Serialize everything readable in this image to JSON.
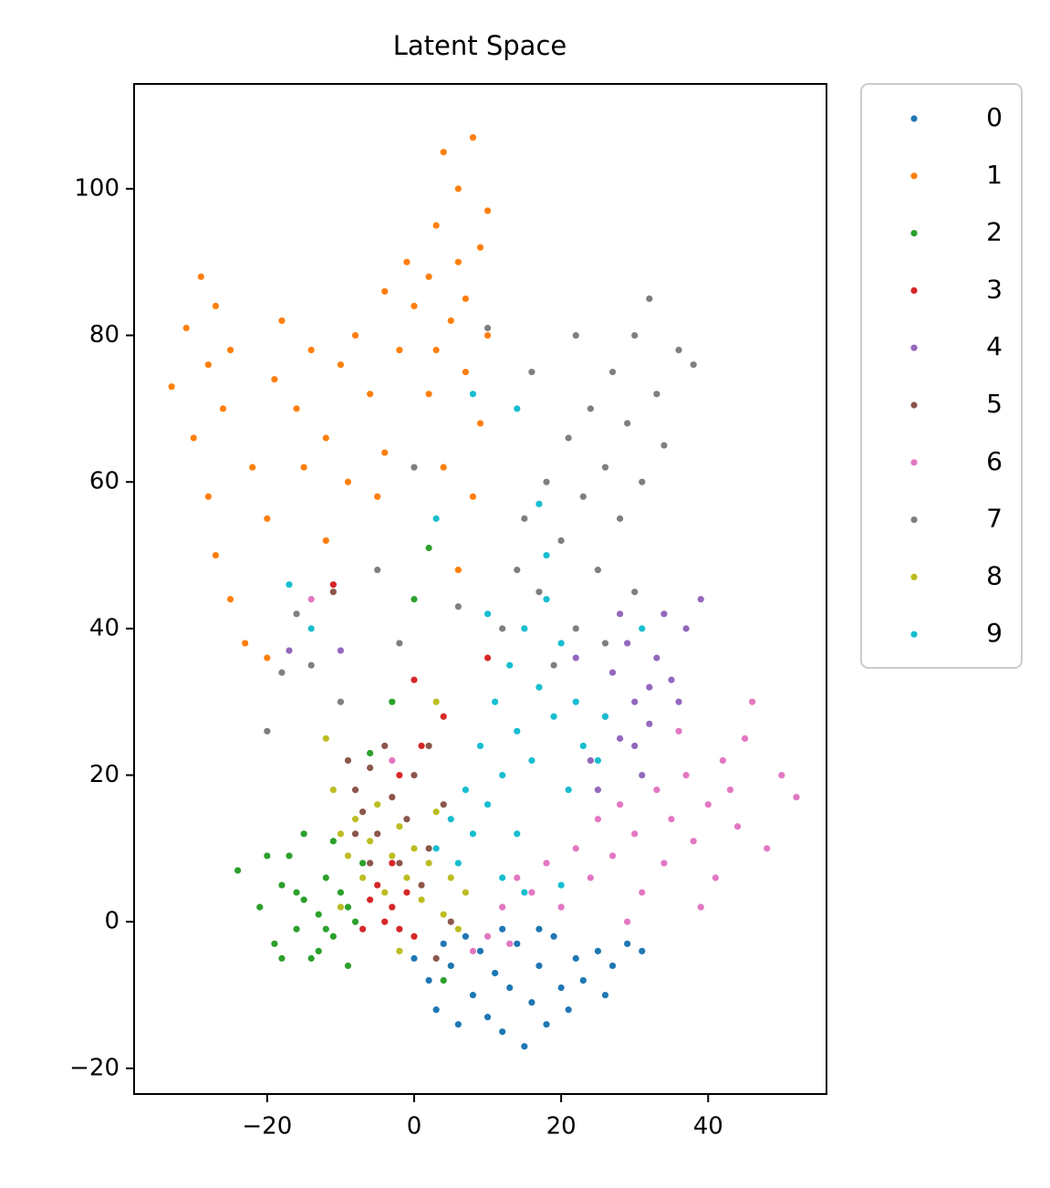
{
  "chart_data": {
    "type": "scatter",
    "title": "Latent Space",
    "xlim": [
      -38.1,
      56.1
    ],
    "ylim": [
      -23.5,
      114.3
    ],
    "xticks": [
      {
        "value": -20,
        "label": "−20"
      },
      0,
      20,
      40
    ],
    "yticks": [
      {
        "value": -20,
        "label": "−20"
      },
      0,
      20,
      40,
      60,
      80,
      100
    ],
    "legend": "outside-upper-right",
    "series": [
      {
        "name": "0",
        "color": "#1f77b4",
        "x": [
          0,
          2,
          3,
          5,
          6,
          8,
          9,
          10,
          11,
          12,
          13,
          14,
          15,
          16,
          17,
          18,
          19,
          20,
          21,
          22,
          23,
          25,
          26,
          27,
          29,
          31,
          7,
          12,
          17,
          4
        ],
        "values": [
          -5,
          -8,
          -12,
          -6,
          -14,
          -10,
          -4,
          -13,
          -7,
          -15,
          -9,
          -3,
          -17,
          -11,
          -6,
          -14,
          -2,
          -9,
          -12,
          -5,
          -8,
          -4,
          -10,
          -6,
          -3,
          -4,
          -2,
          -1,
          -1,
          -3
        ]
      },
      {
        "name": "1",
        "color": "#ff7f0e",
        "x": [
          -33,
          -31,
          -29,
          -28,
          -27,
          -26,
          -30,
          -28,
          -27,
          -25,
          -23,
          -22,
          -20,
          -19,
          -18,
          -16,
          -14,
          -12,
          -10,
          -8,
          -6,
          -4,
          -2,
          0,
          -5,
          -12,
          -9,
          -20,
          -25,
          -15,
          2,
          3,
          4,
          6,
          8,
          9,
          10,
          5,
          7,
          9,
          8,
          6,
          10,
          2,
          4,
          -1,
          6,
          3,
          7,
          -4
        ],
        "values": [
          73,
          81,
          88,
          76,
          84,
          70,
          66,
          58,
          50,
          44,
          38,
          62,
          55,
          74,
          82,
          70,
          78,
          66,
          76,
          80,
          72,
          64,
          78,
          84,
          58,
          52,
          60,
          36,
          78,
          62,
          88,
          95,
          105,
          100,
          107,
          92,
          97,
          82,
          75,
          68,
          58,
          48,
          80,
          72,
          62,
          90,
          90,
          78,
          85,
          86
        ]
      },
      {
        "name": "2",
        "color": "#2ca02c",
        "x": [
          -24,
          -21,
          -19,
          -18,
          -17,
          -16,
          -15,
          -14,
          -13,
          -12,
          -11,
          -10,
          -9,
          -8,
          -7,
          -15,
          -11,
          -18,
          -20,
          -13,
          -6,
          -3,
          0,
          2,
          4,
          -16,
          -12,
          -9
        ],
        "values": [
          7,
          2,
          -3,
          5,
          9,
          -1,
          3,
          -5,
          1,
          6,
          -2,
          4,
          -6,
          0,
          8,
          12,
          11,
          -5,
          9,
          -4,
          23,
          30,
          44,
          51,
          -8,
          4,
          -1,
          2
        ]
      },
      {
        "name": "3",
        "color": "#d62728",
        "x": [
          -6,
          -4,
          -3,
          -2,
          -5,
          -1,
          0,
          1,
          -2,
          0,
          4,
          10,
          -11,
          -7,
          -3
        ],
        "values": [
          3,
          0,
          2,
          -1,
          5,
          4,
          -2,
          24,
          20,
          33,
          28,
          36,
          46,
          -1,
          8
        ]
      },
      {
        "name": "4",
        "color": "#9467bd",
        "x": [
          24,
          26,
          27,
          28,
          29,
          30,
          31,
          32,
          33,
          34,
          35,
          37,
          39,
          25,
          30,
          28,
          32,
          -17,
          -10,
          22,
          36
        ],
        "values": [
          22,
          28,
          34,
          25,
          38,
          30,
          20,
          27,
          36,
          42,
          33,
          40,
          44,
          18,
          24,
          42,
          32,
          37,
          37,
          36,
          30
        ]
      },
      {
        "name": "5",
        "color": "#8c564b",
        "x": [
          -9,
          -8,
          -7,
          -6,
          -5,
          -4,
          -3,
          -2,
          -1,
          0,
          1,
          2,
          3,
          5,
          -8,
          -6,
          -11,
          2,
          4
        ],
        "values": [
          22,
          18,
          15,
          21,
          12,
          24,
          17,
          8,
          14,
          20,
          5,
          10,
          -5,
          0,
          12,
          8,
          45,
          24,
          16
        ]
      },
      {
        "name": "6",
        "color": "#e377c2",
        "x": [
          10,
          12,
          14,
          16,
          18,
          20,
          22,
          24,
          25,
          27,
          28,
          30,
          31,
          33,
          34,
          35,
          37,
          38,
          40,
          41,
          42,
          44,
          45,
          46,
          48,
          50,
          52,
          39,
          29,
          36,
          43,
          -3,
          -14,
          8,
          13
        ],
        "values": [
          -2,
          2,
          6,
          4,
          8,
          2,
          10,
          6,
          14,
          9,
          16,
          12,
          4,
          18,
          8,
          14,
          20,
          11,
          16,
          6,
          22,
          13,
          25,
          30,
          10,
          20,
          17,
          2,
          0,
          26,
          18,
          22,
          44,
          -4,
          -3
        ]
      },
      {
        "name": "7",
        "color": "#7f7f7f",
        "x": [
          12,
          14,
          15,
          17,
          18,
          20,
          21,
          22,
          23,
          24,
          25,
          26,
          27,
          28,
          29,
          30,
          31,
          32,
          33,
          34,
          36,
          38,
          26,
          30,
          19,
          -18,
          -16,
          -14,
          -20,
          -10,
          -5,
          0,
          -2,
          6,
          10,
          16,
          22
        ],
        "values": [
          40,
          48,
          55,
          45,
          60,
          52,
          66,
          40,
          58,
          70,
          48,
          62,
          75,
          55,
          68,
          80,
          60,
          85,
          72,
          65,
          78,
          76,
          38,
          45,
          35,
          34,
          42,
          35,
          26,
          30,
          48,
          62,
          38,
          43,
          81,
          75,
          80
        ]
      },
      {
        "name": "8",
        "color": "#bcbd22",
        "x": [
          -11,
          -10,
          -9,
          -8,
          -7,
          -6,
          -5,
          -4,
          -3,
          -2,
          -1,
          0,
          1,
          2,
          3,
          4,
          5,
          6,
          7,
          -10,
          -12,
          -2,
          3
        ],
        "values": [
          18,
          12,
          9,
          14,
          6,
          11,
          16,
          4,
          9,
          13,
          6,
          10,
          3,
          8,
          15,
          1,
          6,
          -1,
          4,
          2,
          25,
          -4,
          30
        ]
      },
      {
        "name": "9",
        "color": "#17becf",
        "x": [
          3,
          5,
          6,
          7,
          8,
          9,
          10,
          11,
          12,
          13,
          14,
          15,
          16,
          17,
          18,
          19,
          20,
          22,
          23,
          21,
          14,
          12,
          25,
          18,
          17,
          14,
          8,
          -17,
          -14,
          3,
          31,
          26,
          10,
          15,
          20
        ],
        "values": [
          10,
          14,
          8,
          18,
          12,
          24,
          16,
          30,
          20,
          35,
          26,
          40,
          22,
          32,
          44,
          28,
          38,
          30,
          24,
          18,
          12,
          6,
          22,
          50,
          57,
          70,
          72,
          46,
          40,
          55,
          40,
          28,
          42,
          4,
          5
        ]
      }
    ]
  }
}
